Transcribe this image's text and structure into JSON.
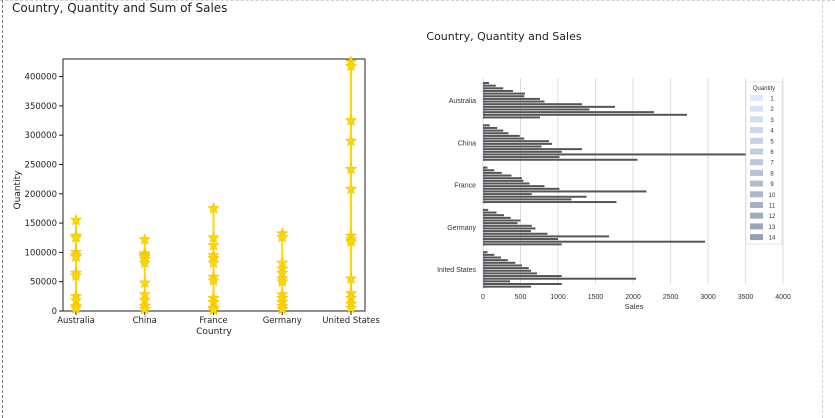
{
  "page_title": "Country, Quantity and Sum of Sales",
  "colors": {
    "star": "#ffd700",
    "bar": "#555555",
    "grid": "#dddddd"
  },
  "chart_data": [
    {
      "type": "scatter",
      "marker": "star-with-vertical-line",
      "title": "",
      "xlabel": "Country",
      "ylabel": "Quantity",
      "categories": [
        "Australia",
        "China",
        "France",
        "Germany",
        "United States"
      ],
      "yticks": [
        "0",
        "50000",
        "100000",
        "150000",
        "200000",
        "250000",
        "300000",
        "350000",
        "400000"
      ],
      "ylim": [
        0,
        430000
      ],
      "grid": false,
      "points": [
        {
          "country": "Australia",
          "values": [
            155000,
            128000,
            125000,
            100000,
            95000,
            92000,
            65000,
            60000,
            25000,
            18000,
            8000,
            4000
          ]
        },
        {
          "country": "China",
          "values": [
            122000,
            98000,
            95000,
            92000,
            88000,
            82000,
            48000,
            28000,
            18000,
            8000,
            3000
          ]
        },
        {
          "country": "France",
          "values": [
            175000,
            125000,
            112000,
            95000,
            90000,
            82000,
            58000,
            52000,
            22000,
            15000,
            5000,
            2000
          ]
        },
        {
          "country": "Germany",
          "values": [
            132000,
            126000,
            82000,
            72000,
            65000,
            55000,
            50000,
            28000,
            22000,
            15000,
            8000,
            3000
          ]
        },
        {
          "country": "United States",
          "values": [
            425000,
            418000,
            325000,
            290000,
            242000,
            208000,
            128000,
            122000,
            118000,
            55000,
            30000,
            22000,
            12000,
            5000
          ]
        }
      ]
    },
    {
      "type": "bar",
      "orientation": "horizontal",
      "title": "Country, Quantity and Sales",
      "xlabel": "Sales",
      "ylabel": "",
      "categories": [
        "Australia",
        "China",
        "France",
        "Germany",
        "United States"
      ],
      "category_labels_shown": [
        "Australia",
        "China",
        "France",
        "Germany",
        "Inited States"
      ],
      "xticks": [
        "0",
        "500",
        "1000",
        "1500",
        "2000",
        "2500",
        "3000",
        "3500",
        "4000"
      ],
      "xlim": [
        0,
        4000
      ],
      "grid": true,
      "legend": {
        "title": "Quantity",
        "placement": "top-right",
        "entries": [
          "1",
          "2",
          "3",
          "4",
          "5",
          "6",
          "7",
          "8",
          "9",
          "10",
          "11",
          "12",
          "13",
          "14"
        ]
      },
      "series": [
        {
          "name": "1",
          "values": [
            80,
            90,
            60,
            70,
            60
          ]
        },
        {
          "name": "2",
          "values": [
            170,
            190,
            150,
            180,
            150
          ]
        },
        {
          "name": "3",
          "values": [
            270,
            270,
            250,
            280,
            240
          ]
        },
        {
          "name": "4",
          "values": [
            400,
            340,
            380,
            370,
            330
          ]
        },
        {
          "name": "5",
          "values": [
            560,
            490,
            520,
            500,
            430
          ]
        },
        {
          "name": "6",
          "values": [
            550,
            550,
            540,
            460,
            520
          ]
        },
        {
          "name": "7",
          "values": [
            760,
            880,
            620,
            650,
            610
          ]
        },
        {
          "name": "8",
          "values": [
            820,
            920,
            820,
            700,
            640
          ]
        },
        {
          "name": "9",
          "values": [
            1320,
            780,
            1020,
            640,
            720
          ]
        },
        {
          "name": "10",
          "values": [
            1760,
            1320,
            2180,
            860,
            1050
          ]
        },
        {
          "name": "11",
          "values": [
            1420,
            1050,
            650,
            1680,
            2040
          ]
        },
        {
          "name": "12",
          "values": [
            2280,
            3700,
            1380,
            1000,
            360
          ]
        },
        {
          "name": "13",
          "values": [
            2720,
            1020,
            1180,
            2960,
            1050
          ]
        },
        {
          "name": "14",
          "values": [
            760,
            2060,
            1780,
            1050,
            640
          ]
        }
      ]
    }
  ]
}
